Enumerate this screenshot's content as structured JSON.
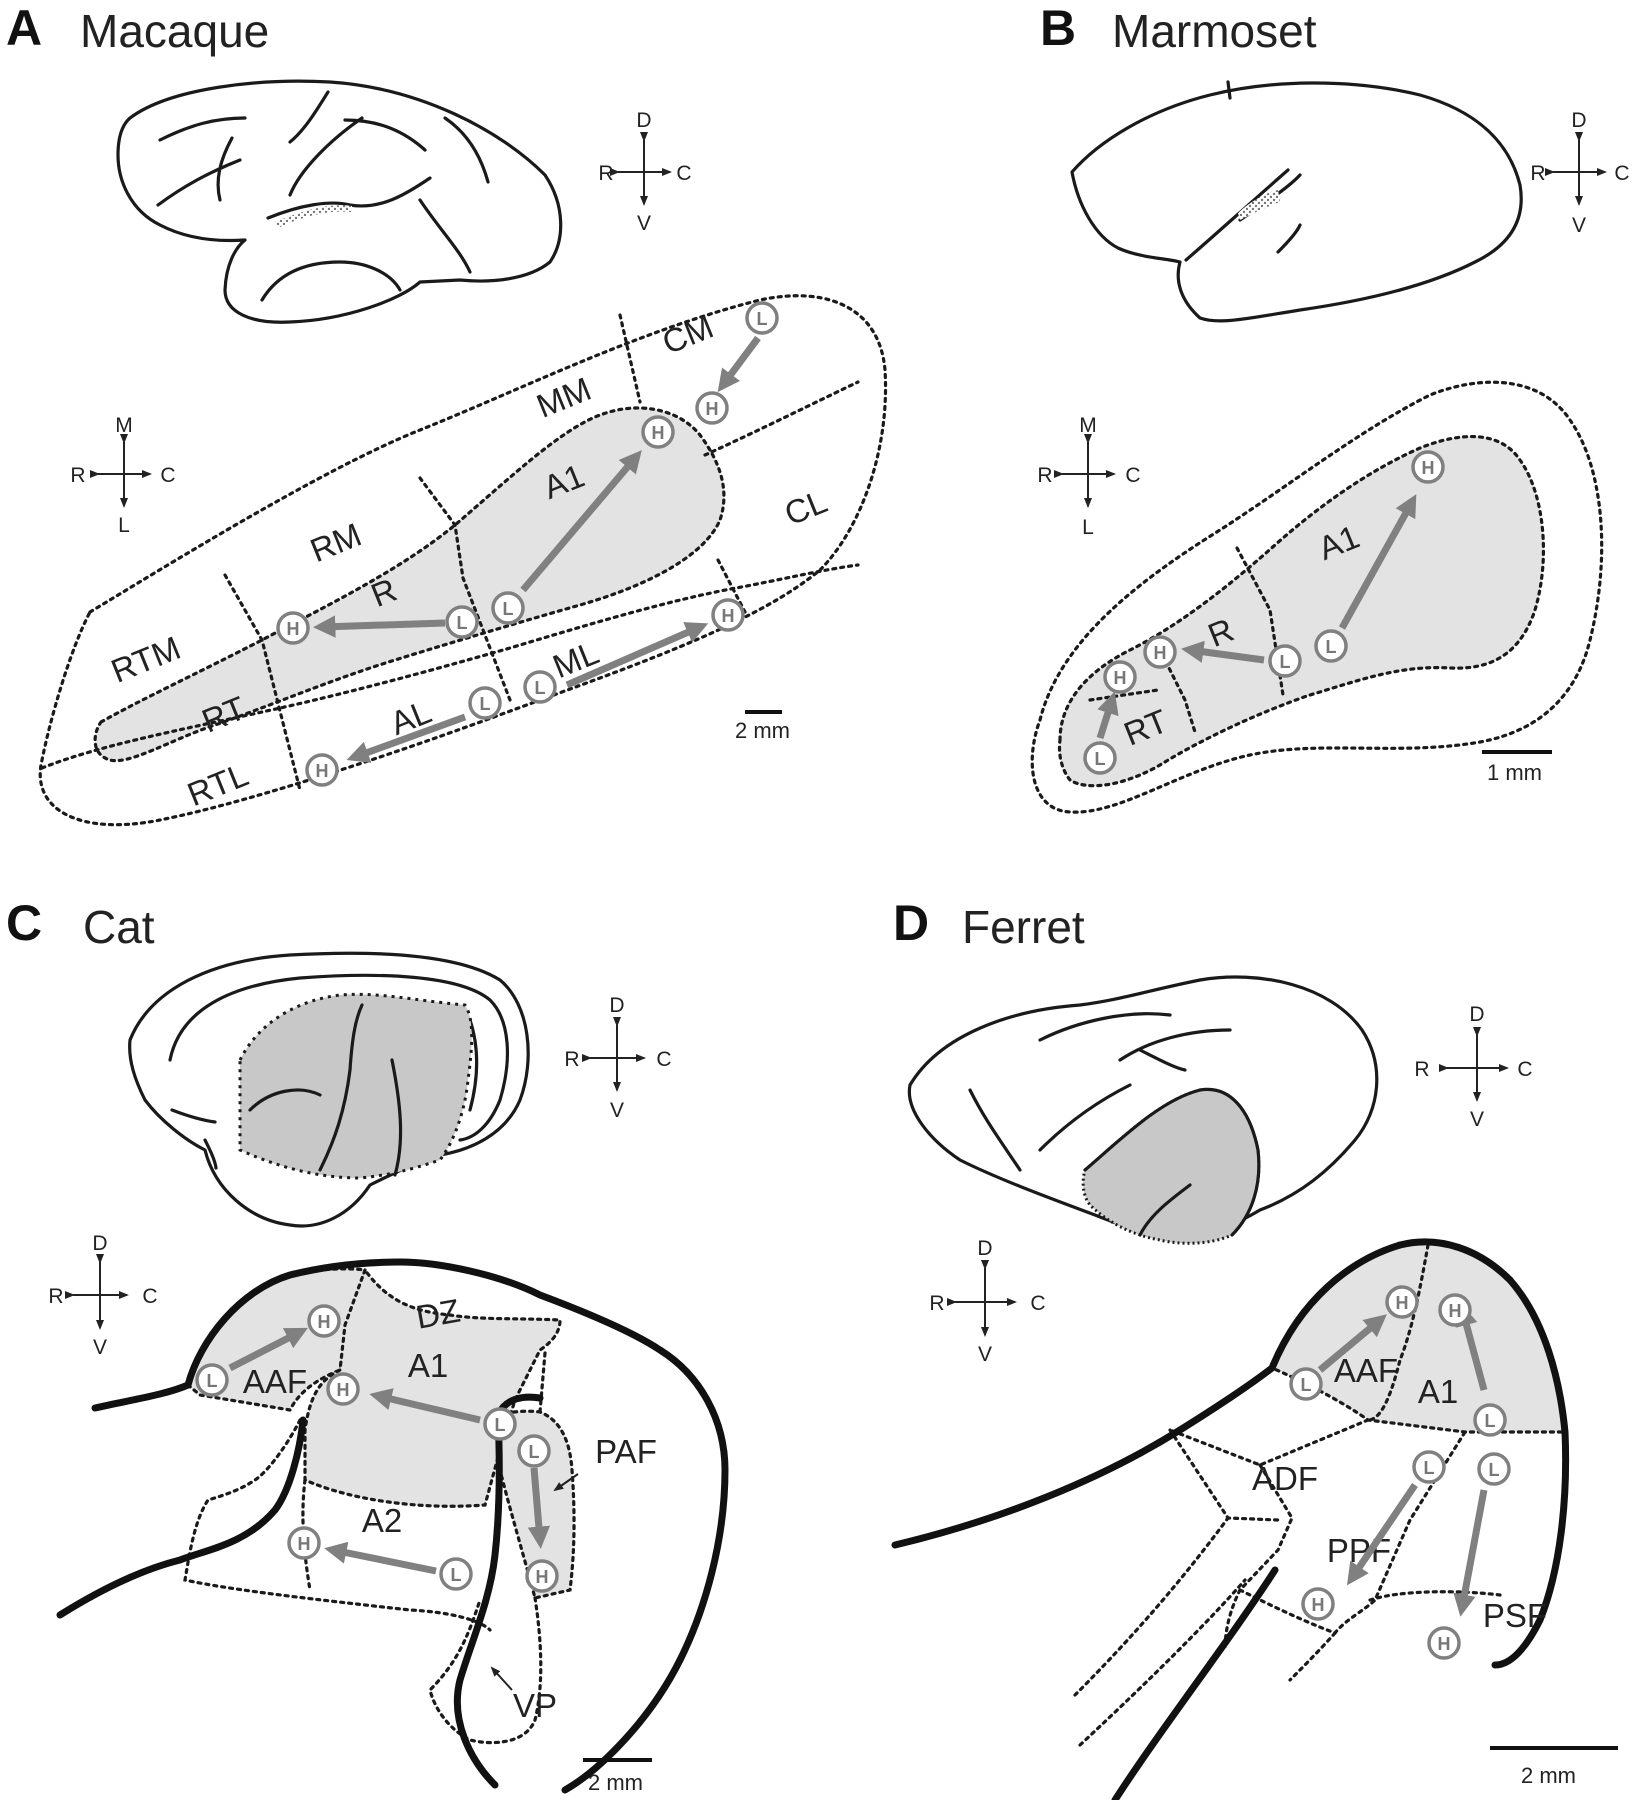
{
  "panels": [
    {
      "id": "A",
      "letter": "A",
      "title": "Macaque",
      "scale": "2 mm",
      "areas": [
        "CM",
        "MM",
        "A1",
        "CL",
        "RM",
        "R",
        "RTM",
        "RT",
        "RTL",
        "AL",
        "ML"
      ]
    },
    {
      "id": "B",
      "letter": "B",
      "title": "Marmoset",
      "scale": "1 mm",
      "areas": [
        "A1",
        "R",
        "RT"
      ]
    },
    {
      "id": "C",
      "letter": "C",
      "title": "Cat",
      "scale": "2 mm",
      "areas": [
        "DZ",
        "A1",
        "AAF",
        "PAF",
        "A2",
        "VP"
      ]
    },
    {
      "id": "D",
      "letter": "D",
      "title": "Ferret",
      "scale": "2 mm",
      "areas": [
        "AAF",
        "A1",
        "ADF",
        "PPF",
        "PSF"
      ]
    }
  ],
  "compass": {
    "dv": {
      "top": "D",
      "bottom": "V",
      "left": "R",
      "right": "C"
    },
    "ml": {
      "top": "M",
      "bottom": "L",
      "left": "R",
      "right": "C"
    }
  },
  "tonotopy": {
    "low": "L",
    "high": "H"
  },
  "colors": {
    "core_fill": "#e3e3e3",
    "brain_highlight": "#c8c8c8",
    "arrow": "#808080",
    "outline": "#1a1a1a"
  },
  "gradients": [
    {
      "panel": "A",
      "area": "A1",
      "from": "L",
      "to": "H"
    },
    {
      "panel": "A",
      "area": "R",
      "from": "L",
      "to": "H"
    },
    {
      "panel": "A",
      "area": "CM",
      "from": "L",
      "to": "H"
    },
    {
      "panel": "A",
      "area": "ML",
      "from": "L",
      "to": "H"
    },
    {
      "panel": "A",
      "area": "AL",
      "from": "L",
      "to": "H"
    },
    {
      "panel": "B",
      "area": "A1",
      "from": "L",
      "to": "H"
    },
    {
      "panel": "B",
      "area": "R",
      "from": "L",
      "to": "H"
    },
    {
      "panel": "B",
      "area": "RT",
      "from": "L",
      "to": "H"
    },
    {
      "panel": "C",
      "area": "AAF",
      "from": "L",
      "to": "H"
    },
    {
      "panel": "C",
      "area": "A1",
      "from": "L",
      "to": "H"
    },
    {
      "panel": "C",
      "area": "PAF",
      "from": "L",
      "to": "H"
    },
    {
      "panel": "C",
      "area": "A2",
      "from": "L",
      "to": "H"
    },
    {
      "panel": "D",
      "area": "AAF",
      "from": "L",
      "to": "H"
    },
    {
      "panel": "D",
      "area": "A1",
      "from": "L",
      "to": "H"
    },
    {
      "panel": "D",
      "area": "PPF",
      "from": "L",
      "to": "H"
    },
    {
      "panel": "D",
      "area": "PSF",
      "from": "L",
      "to": "H"
    }
  ]
}
